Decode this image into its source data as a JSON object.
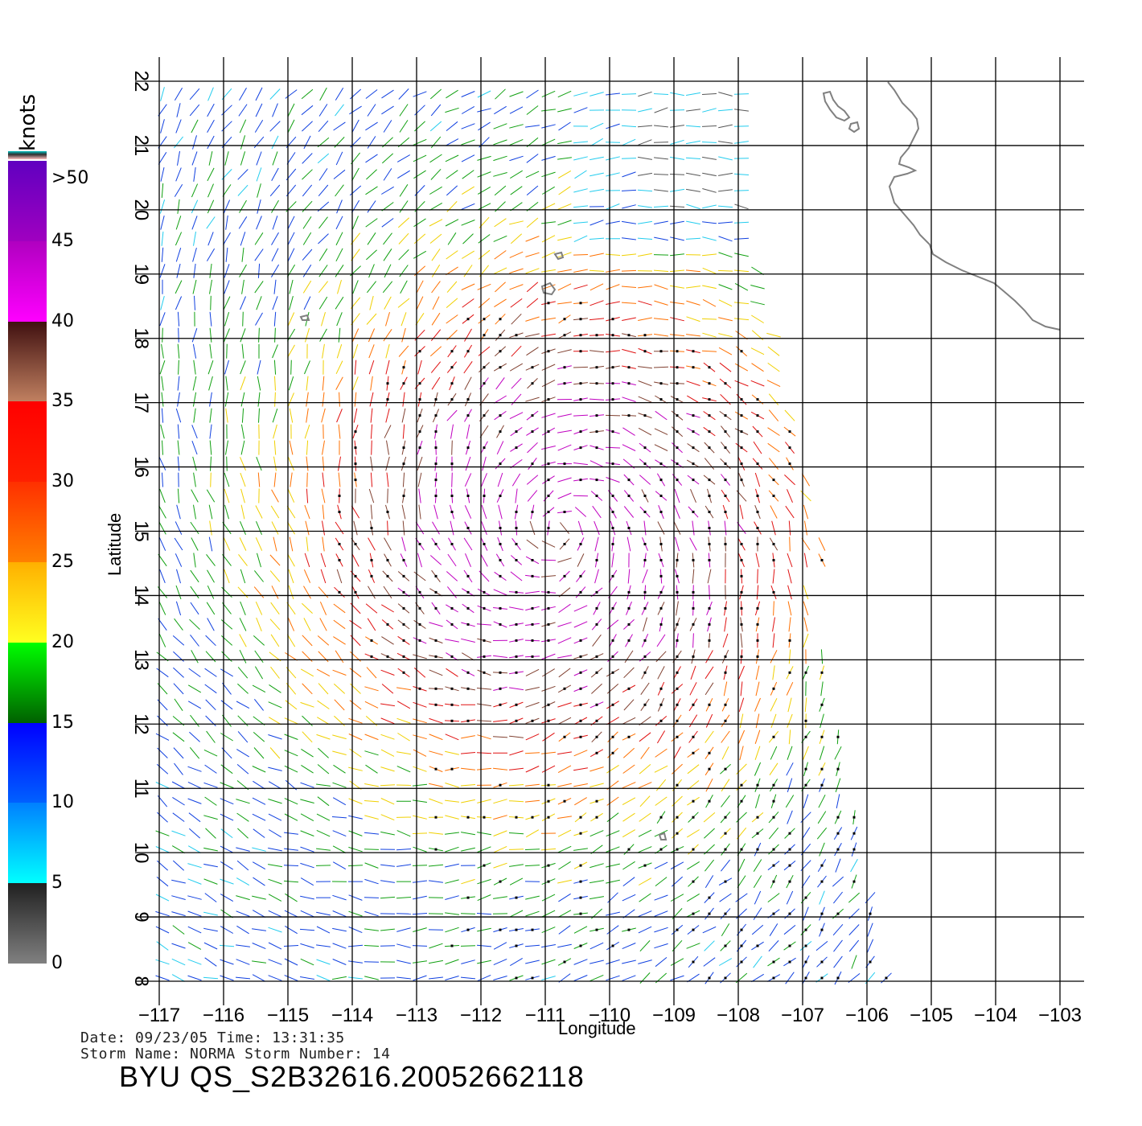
{
  "map": {
    "lon_ticks": [
      "−117",
      "−116",
      "−115",
      "−114",
      "−113",
      "−112",
      "−111",
      "−110",
      "−109",
      "−108",
      "−107",
      "−106",
      "−105",
      "−104",
      "−103"
    ],
    "lat_ticks": [
      "8",
      "9",
      "10",
      "11",
      "12",
      "13",
      "14",
      "15",
      "16",
      "17",
      "18",
      "19",
      "20",
      "21",
      "22"
    ],
    "lon_range": [
      -117,
      -103
    ],
    "lat_range": [
      8,
      22
    ],
    "xlabel": "Longitude",
    "ylabel": "Latitude",
    "coastline_color": "#808080",
    "rain_flag_color": "#000000"
  },
  "legend": {
    "unit": "knots",
    "labels": [
      ">50",
      "45",
      "40",
      "35",
      "30",
      "25",
      "20",
      "15",
      "10",
      "5",
      "0"
    ],
    "bins": [
      {
        "from": 0,
        "to": 5,
        "colors": [
          "#808080",
          "#202020"
        ]
      },
      {
        "from": 5,
        "to": 10,
        "colors": [
          "#00ffff",
          "#0080ff"
        ]
      },
      {
        "from": 10,
        "to": 15,
        "colors": [
          "#0060ff",
          "#0000ff"
        ]
      },
      {
        "from": 15,
        "to": 20,
        "colors": [
          "#006000",
          "#00ff00"
        ]
      },
      {
        "from": 20,
        "to": 25,
        "colors": [
          "#ffff20",
          "#ffb000"
        ]
      },
      {
        "from": 25,
        "to": 30,
        "colors": [
          "#ff8000",
          "#ff3000"
        ]
      },
      {
        "from": 30,
        "to": 35,
        "colors": [
          "#ff2000",
          "#ff0000"
        ]
      },
      {
        "from": 35,
        "to": 40,
        "colors": [
          "#c08060",
          "#401010"
        ]
      },
      {
        "from": 40,
        "to": 45,
        "colors": [
          "#ff00ff",
          "#b000c0"
        ]
      },
      {
        "from": 45,
        "to": 50,
        "colors": [
          "#a000c0",
          "#6000c0"
        ]
      }
    ]
  },
  "footer": {
    "line1": "Date: 09/23/05   Time: 13:31:35",
    "line2": "Storm Name: NORMA   Storm Number: 14",
    "title": "BYU QS_S2B32616.20052662118"
  }
}
